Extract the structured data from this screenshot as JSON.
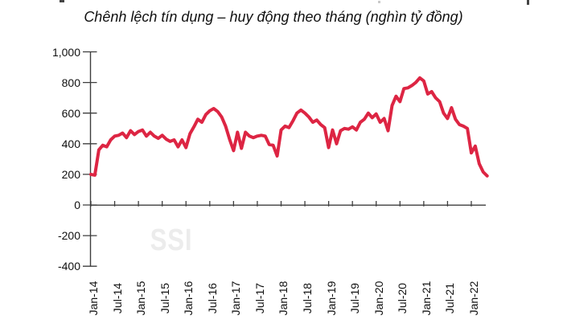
{
  "title": "Chênh lệch tín dụng – huy động theo tháng (nghìn tỷ đồng)",
  "watermark": "SSI",
  "chart_data": {
    "type": "line",
    "title": "Chênh lệch tín dụng – huy động theo tháng (nghìn tỷ đồng)",
    "unit": "nghìn tỷ đồng",
    "grid": false,
    "legend": false,
    "line_color": "#DD2543",
    "axis_color": "#3d3d3d",
    "watermark_color": "#ececec",
    "ylim": [
      -400,
      1000
    ],
    "y_ticks": [
      1000,
      800,
      600,
      400,
      200,
      0,
      -200,
      -400
    ],
    "y_tick_labels": [
      "1,000",
      "800",
      "600",
      "400",
      "200",
      "0",
      "-200",
      "-400"
    ],
    "x_tick_labels": [
      "Jan-14",
      "Jul-14",
      "Jan-15",
      "Jul-15",
      "Jan-16",
      "Jul-16",
      "Jan-17",
      "Jul-17",
      "Jan-18",
      "Jul-18",
      "Jan-19",
      "Jul-19",
      "Jan-20",
      "Jul-20",
      "Jan-21",
      "Jul-21",
      "Jan-22"
    ],
    "x": [
      "Jan-14",
      "Feb-14",
      "Mar-14",
      "Apr-14",
      "May-14",
      "Jun-14",
      "Jul-14",
      "Aug-14",
      "Sep-14",
      "Oct-14",
      "Nov-14",
      "Dec-14",
      "Jan-15",
      "Feb-15",
      "Mar-15",
      "Apr-15",
      "May-15",
      "Jun-15",
      "Jul-15",
      "Aug-15",
      "Sep-15",
      "Oct-15",
      "Nov-15",
      "Dec-15",
      "Jan-16",
      "Feb-16",
      "Mar-16",
      "Apr-16",
      "May-16",
      "Jun-16",
      "Jul-16",
      "Aug-16",
      "Sep-16",
      "Oct-16",
      "Nov-16",
      "Dec-16",
      "Jan-17",
      "Feb-17",
      "Mar-17",
      "Apr-17",
      "May-17",
      "Jun-17",
      "Jul-17",
      "Aug-17",
      "Sep-17",
      "Oct-17",
      "Nov-17",
      "Dec-17",
      "Jan-18",
      "Feb-18",
      "Mar-18",
      "Apr-18",
      "May-18",
      "Jun-18",
      "Jul-18",
      "Aug-18",
      "Sep-18",
      "Oct-18",
      "Nov-18",
      "Dec-18",
      "Jan-19",
      "Feb-19",
      "Mar-19",
      "Apr-19",
      "May-19",
      "Jun-19",
      "Jul-19",
      "Aug-19",
      "Sep-19",
      "Oct-19",
      "Nov-19",
      "Dec-19",
      "Jan-20",
      "Feb-20",
      "Mar-20",
      "Apr-20",
      "May-20",
      "Jun-20",
      "Jul-20",
      "Aug-20",
      "Sep-20",
      "Oct-20",
      "Nov-20",
      "Dec-20",
      "Jan-21",
      "Feb-21",
      "Mar-21",
      "Apr-21",
      "May-21",
      "Jun-21",
      "Jul-21",
      "Aug-21",
      "Sep-21",
      "Oct-21",
      "Nov-21",
      "Dec-21",
      "Jan-22",
      "Feb-22",
      "Mar-22",
      "Apr-22",
      "May-22"
    ],
    "values": [
      200,
      195,
      360,
      390,
      380,
      425,
      450,
      455,
      470,
      440,
      485,
      460,
      480,
      490,
      450,
      475,
      450,
      435,
      455,
      430,
      415,
      425,
      380,
      425,
      375,
      465,
      510,
      560,
      540,
      590,
      615,
      630,
      610,
      575,
      515,
      430,
      355,
      475,
      370,
      475,
      450,
      440,
      450,
      455,
      450,
      395,
      390,
      320,
      490,
      515,
      505,
      550,
      600,
      620,
      600,
      575,
      540,
      555,
      525,
      505,
      375,
      490,
      400,
      485,
      500,
      495,
      510,
      490,
      540,
      560,
      600,
      570,
      595,
      540,
      565,
      485,
      650,
      710,
      675,
      760,
      765,
      780,
      800,
      830,
      810,
      725,
      740,
      700,
      675,
      600,
      565,
      635,
      560,
      525,
      515,
      500,
      340,
      385,
      270,
      215,
      190
    ]
  }
}
